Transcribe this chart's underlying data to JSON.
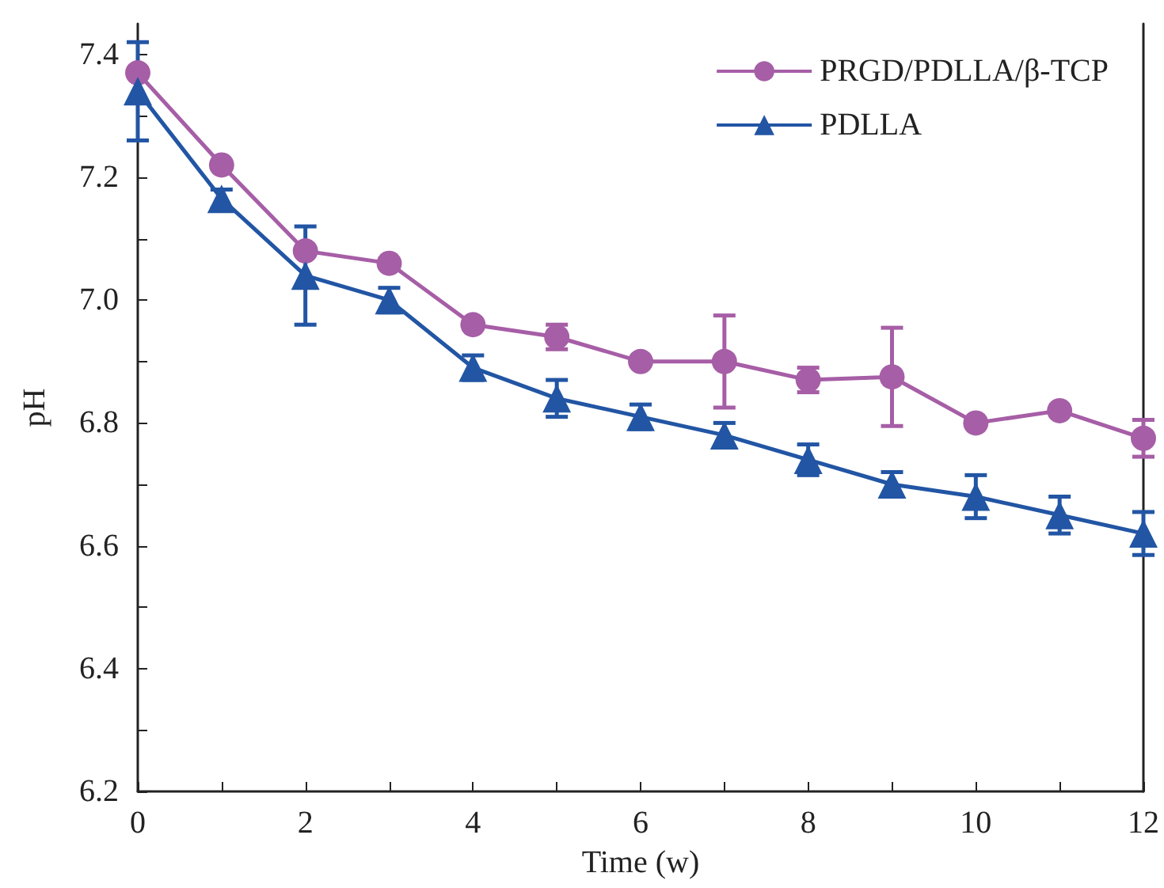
{
  "chart_data": {
    "type": "line",
    "xlabel": "Time (w)",
    "ylabel": "pH",
    "xlim": [
      0,
      12
    ],
    "xticks": [
      0,
      {
        "value": 1,
        "label": null
      },
      2,
      {
        "value": 3,
        "label": null
      },
      4,
      {
        "value": 5,
        "label": null
      },
      6,
      {
        "value": 7,
        "label": null
      },
      8,
      {
        "value": 9,
        "label": null
      },
      10,
      {
        "value": 11,
        "label": null
      },
      12
    ],
    "ylim": [
      6.2,
      7.45
    ],
    "yticks": [
      6.2,
      {
        "value": 6.3,
        "label": null
      },
      6.4,
      {
        "value": 6.5,
        "label": null
      },
      6.6,
      {
        "value": 6.7,
        "label": null
      },
      6.8,
      {
        "value": 6.9,
        "label": null
      },
      {
        "value": 7,
        "label": "7.0"
      },
      {
        "value": 7.1,
        "label": null
      },
      7.2,
      {
        "value": 7.3,
        "label": null
      },
      7.4
    ],
    "grid": false,
    "legend": "top right",
    "line_style": "solid",
    "series": [
      {
        "name": "PRGD/PDLLA/β-TCP",
        "color": "#a65ea6",
        "marker": "circle",
        "x": [
          0,
          1,
          2,
          3,
          4,
          5,
          6,
          7,
          8,
          9,
          10,
          11,
          12
        ],
        "values": [
          7.37,
          7.22,
          7.08,
          7.06,
          6.96,
          6.94,
          6.9,
          6.9,
          6.87,
          6.875,
          6.8,
          6.82,
          6.775
        ],
        "errors": [
          null,
          null,
          null,
          null,
          null,
          0.02,
          null,
          0.075,
          0.02,
          0.08,
          null,
          null,
          0.03
        ]
      },
      {
        "name": "PDLLA",
        "color": "#2255a4",
        "marker": "triangle",
        "x": [
          0,
          1,
          2,
          3,
          4,
          5,
          6,
          7,
          8,
          9,
          10,
          11,
          12
        ],
        "values": [
          7.34,
          7.165,
          7.04,
          7.0,
          6.89,
          6.84,
          6.81,
          6.78,
          6.74,
          6.7,
          6.68,
          6.65,
          6.62
        ],
        "errors": [
          [
            7.26,
            7.42
          ],
          0.015,
          0.08,
          0.02,
          0.02,
          0.03,
          0.02,
          0.02,
          0.025,
          0.02,
          0.035,
          0.03,
          0.035
        ]
      }
    ]
  }
}
